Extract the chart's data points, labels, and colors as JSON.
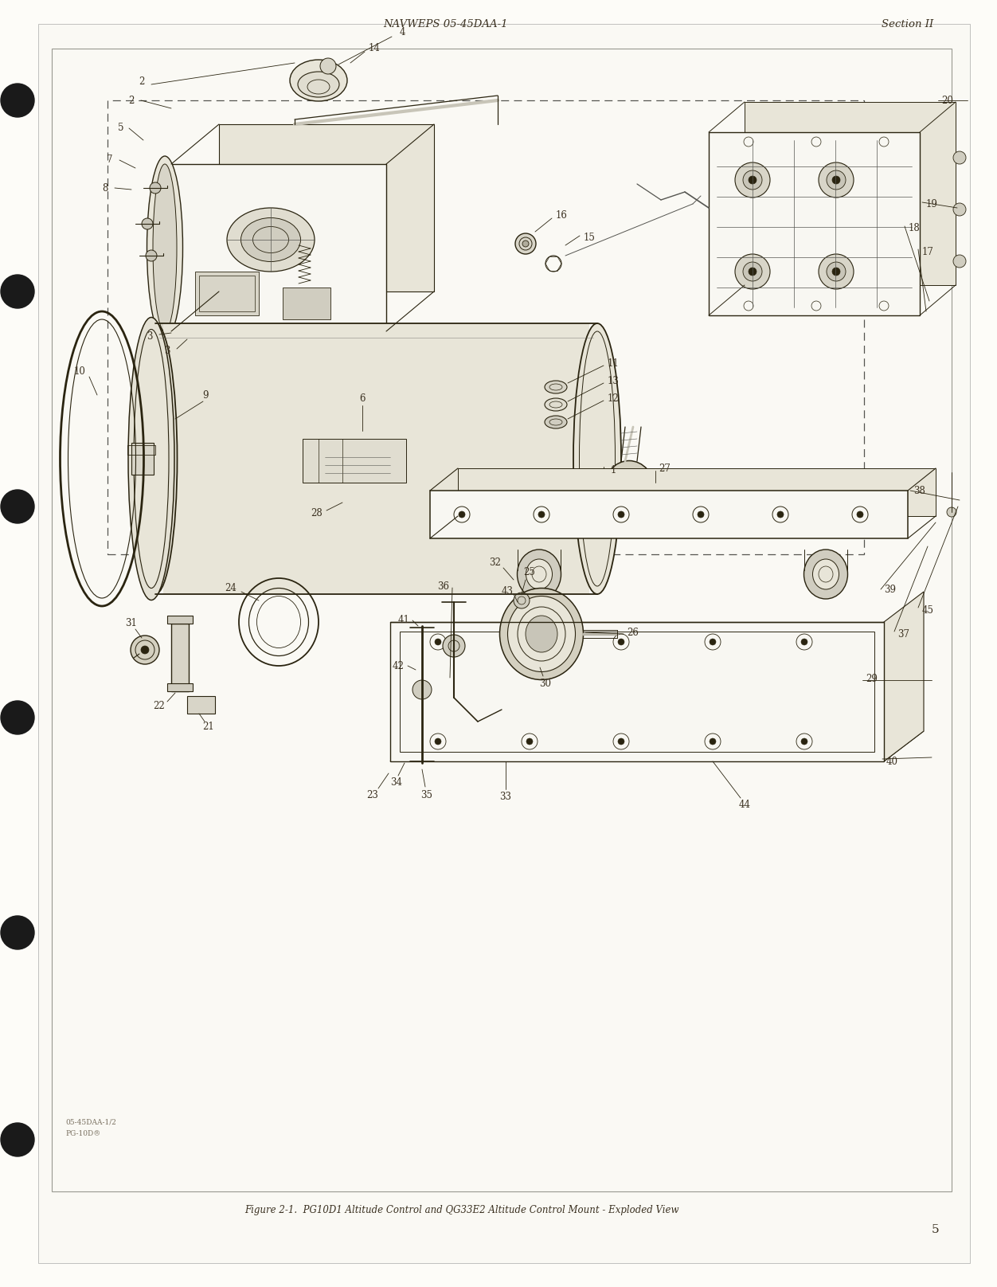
{
  "page_bg": "#fdfcf8",
  "page_color": "#faf9f4",
  "inner_bg": "#f8f7f2",
  "header_left": "NAVWEPS 05-45DAA-1",
  "header_right": "Section II",
  "footer_caption": "Figure 2-1.  PG10D1 Altitude Control and QG33E2 Altitude Control Mount - Exploded View",
  "footer_page_num": "5",
  "watermark_line1": "05-45DAA-1/2",
  "watermark_line2": "PG-10D®",
  "text_color": "#3a3020",
  "dark_color": "#1a1a1a",
  "line_color": "#2a2410",
  "gray_color": "#555550",
  "light_gray": "#888880",
  "dashed_color": "#555550",
  "fill_light": "#e8e5d8",
  "fill_mid": "#d4d0c0",
  "fill_dark": "#b0ac9c"
}
